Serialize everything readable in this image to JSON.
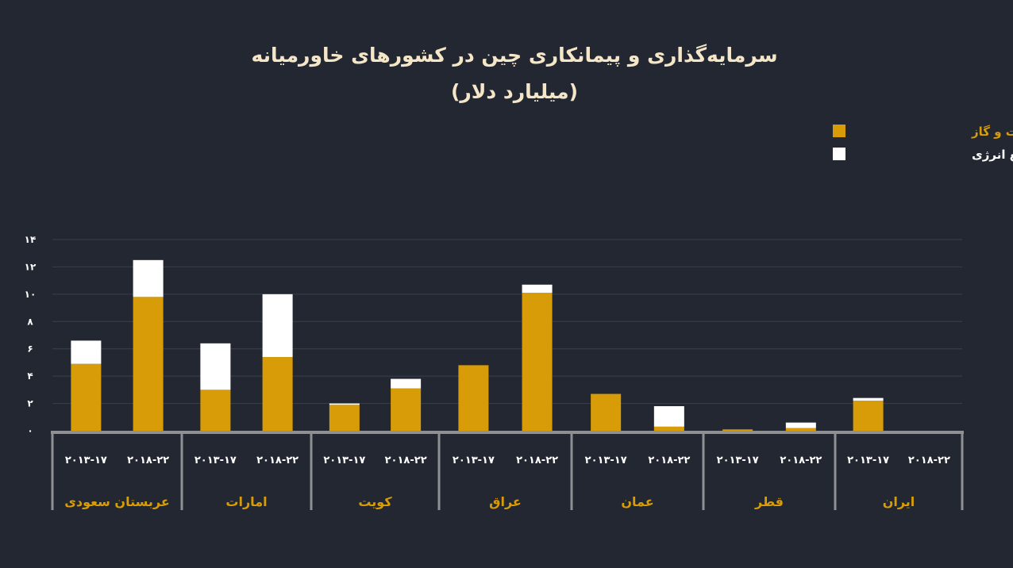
{
  "chart_data": {
    "type": "bar",
    "stacked": true,
    "title": "سرمایه‌گذاری و پیمانکاری چین در کشورهای خاورمیانه",
    "subtitle": "(میلیارد دلار)",
    "legend_position": "top-right",
    "ylim": [
      0,
      14
    ],
    "y_ticks": [
      "۰",
      "۲",
      "۴",
      "۶",
      "۸",
      "۱۰",
      "۱۲",
      "۱۴"
    ],
    "y_tick_values": [
      0,
      2,
      4,
      6,
      8,
      10,
      12,
      14
    ],
    "grid": true,
    "period_labels": [
      "۲۰۱۳-۱۷",
      "۲۰۱۸-۲۲"
    ],
    "countries": [
      "عربستان سعودی",
      "امارات",
      "کویت",
      "عراق",
      "عمان",
      "قطر",
      "ایران"
    ],
    "series": [
      {
        "name": "نفت و گاز",
        "color": "#D79C07",
        "values": [
          [
            4.9,
            9.8
          ],
          [
            3.0,
            5.4
          ],
          [
            1.9,
            3.1
          ],
          [
            4.8,
            10.1
          ],
          [
            2.7,
            0.3
          ],
          [
            0.1,
            0.2
          ],
          [
            2.2,
            0
          ]
        ]
      },
      {
        "name": "سایر منابع انرژی",
        "color": "#FFFFFF",
        "values": [
          [
            1.7,
            2.7
          ],
          [
            3.4,
            4.6
          ],
          [
            0.1,
            0.7
          ],
          [
            0,
            0.6
          ],
          [
            0,
            1.5
          ],
          [
            0,
            0.4
          ],
          [
            0.2,
            0
          ]
        ]
      }
    ]
  },
  "colors": {
    "background": "#222732",
    "accent": "#D79C07",
    "grid": "#3A404C",
    "axis": "#8F9093",
    "text": "#FFFFFF",
    "title": "#F5E6C8"
  }
}
